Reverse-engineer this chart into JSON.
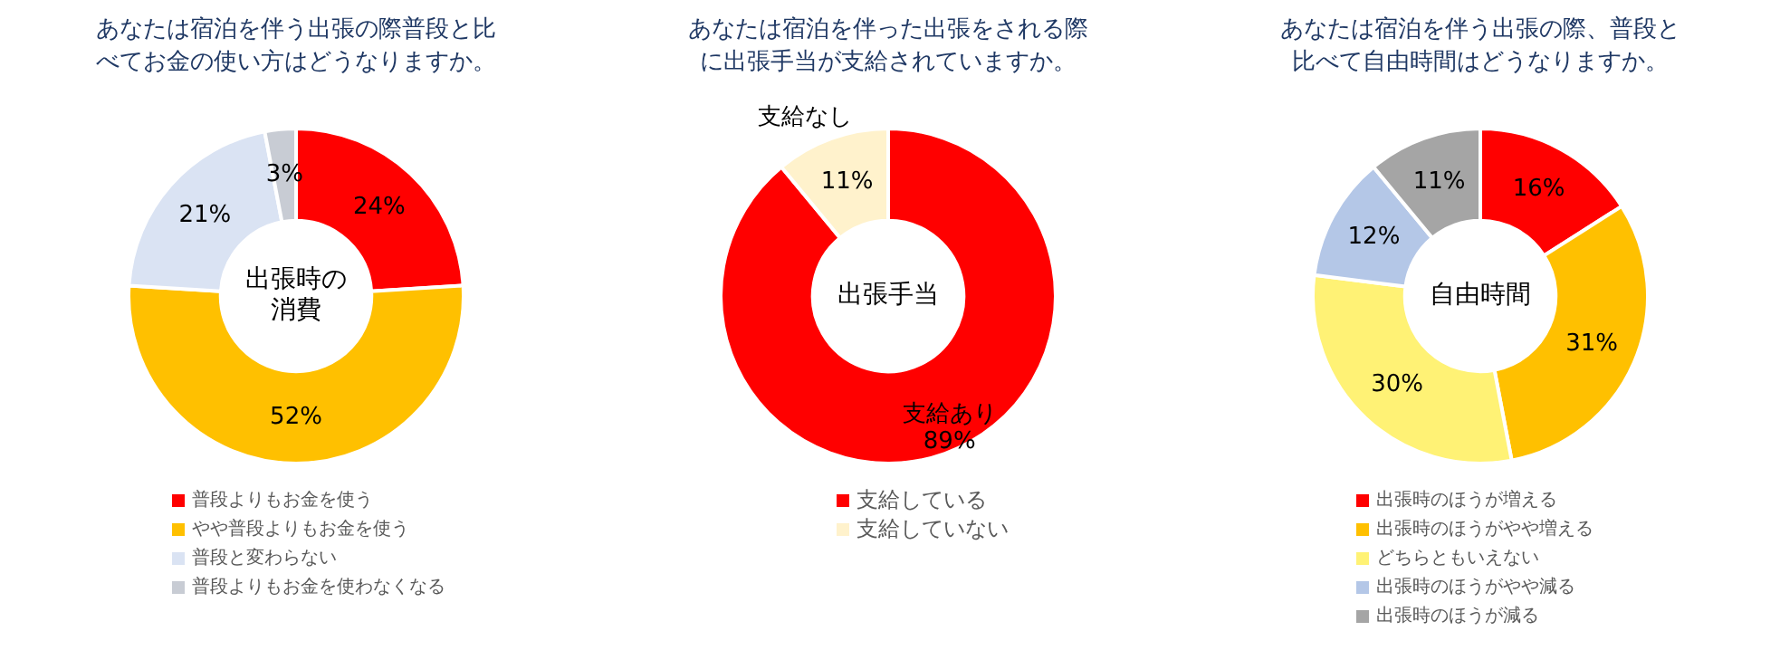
{
  "chart_data": [
    {
      "type": "donut",
      "title": "あなたは宿泊を伴う出張の際普段と比べてお金の使い方はどうなりますか。",
      "categories": [
        "普段よりもお金を使う",
        "やや普段よりもお金を使う",
        "普段と変わらない",
        "普段よりもお金を使わなくなる"
      ],
      "values": [
        24,
        52,
        21,
        3
      ],
      "colors": [
        "#ff0000",
        "#ffc000",
        "#dae3f3",
        "#c8ccd4"
      ],
      "value_labels": [
        "24%",
        "52%",
        "21%",
        "3%"
      ],
      "annotations": [
        "出張時の消費"
      ],
      "legend": "bottom"
    },
    {
      "type": "donut",
      "title": "あなたは宿泊を伴った出張をされる際に出張手当が支給されていますか。",
      "categories": [
        "支給している",
        "支給していない"
      ],
      "values": [
        89,
        11
      ],
      "colors": [
        "#ff0000",
        "#fff2cc"
      ],
      "value_labels": [
        "89%",
        "11%"
      ],
      "annotations": [
        "出張手当",
        "支給あり",
        "支給なし"
      ],
      "legend": "bottom"
    },
    {
      "type": "donut",
      "title": "あなたは宿泊を伴う出張の際、普段と比べて自由時間はどうなりますか。",
      "categories": [
        "出張時のほうが増える",
        "出張時のほうがやや増える",
        "どちらともいえない",
        "出張時のほうがやや減る",
        "出張時のほうが減る"
      ],
      "values": [
        16,
        31,
        30,
        12,
        11
      ],
      "colors": [
        "#ff0000",
        "#ffc000",
        "#fff275",
        "#b4c7e7",
        "#a5a5a5"
      ],
      "value_labels": [
        "16%",
        "31%",
        "30%",
        "12%",
        "11%"
      ],
      "annotations": [
        "自由時間"
      ],
      "legend": "bottom"
    }
  ]
}
